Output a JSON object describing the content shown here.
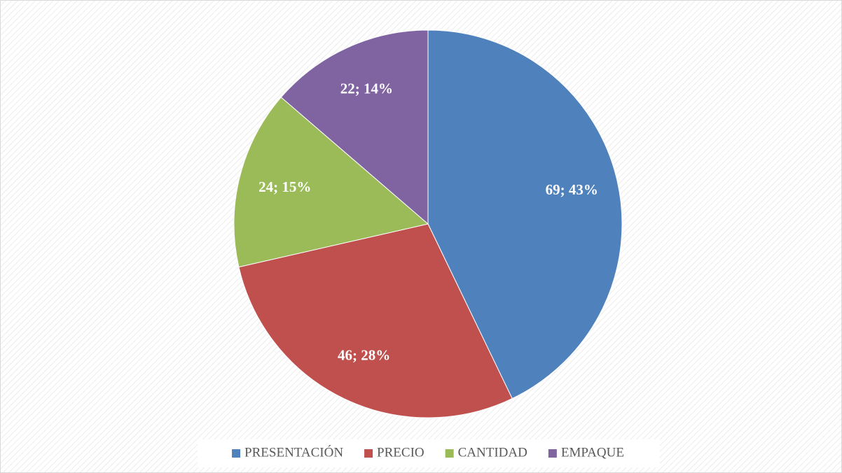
{
  "chart_data": {
    "type": "pie",
    "categories": [
      "PRESENTACIÓN",
      "PRECIO",
      "CANTIDAD",
      "EMPAQUE"
    ],
    "values": [
      69,
      46,
      24,
      22
    ],
    "value_labels": [
      "69; 43%",
      "46; 28%",
      "24; 15%",
      "22; 14%"
    ],
    "colors": [
      "#4f81bd",
      "#c0504d",
      "#9bbb59",
      "#8064a2"
    ],
    "legend": "bottom"
  }
}
